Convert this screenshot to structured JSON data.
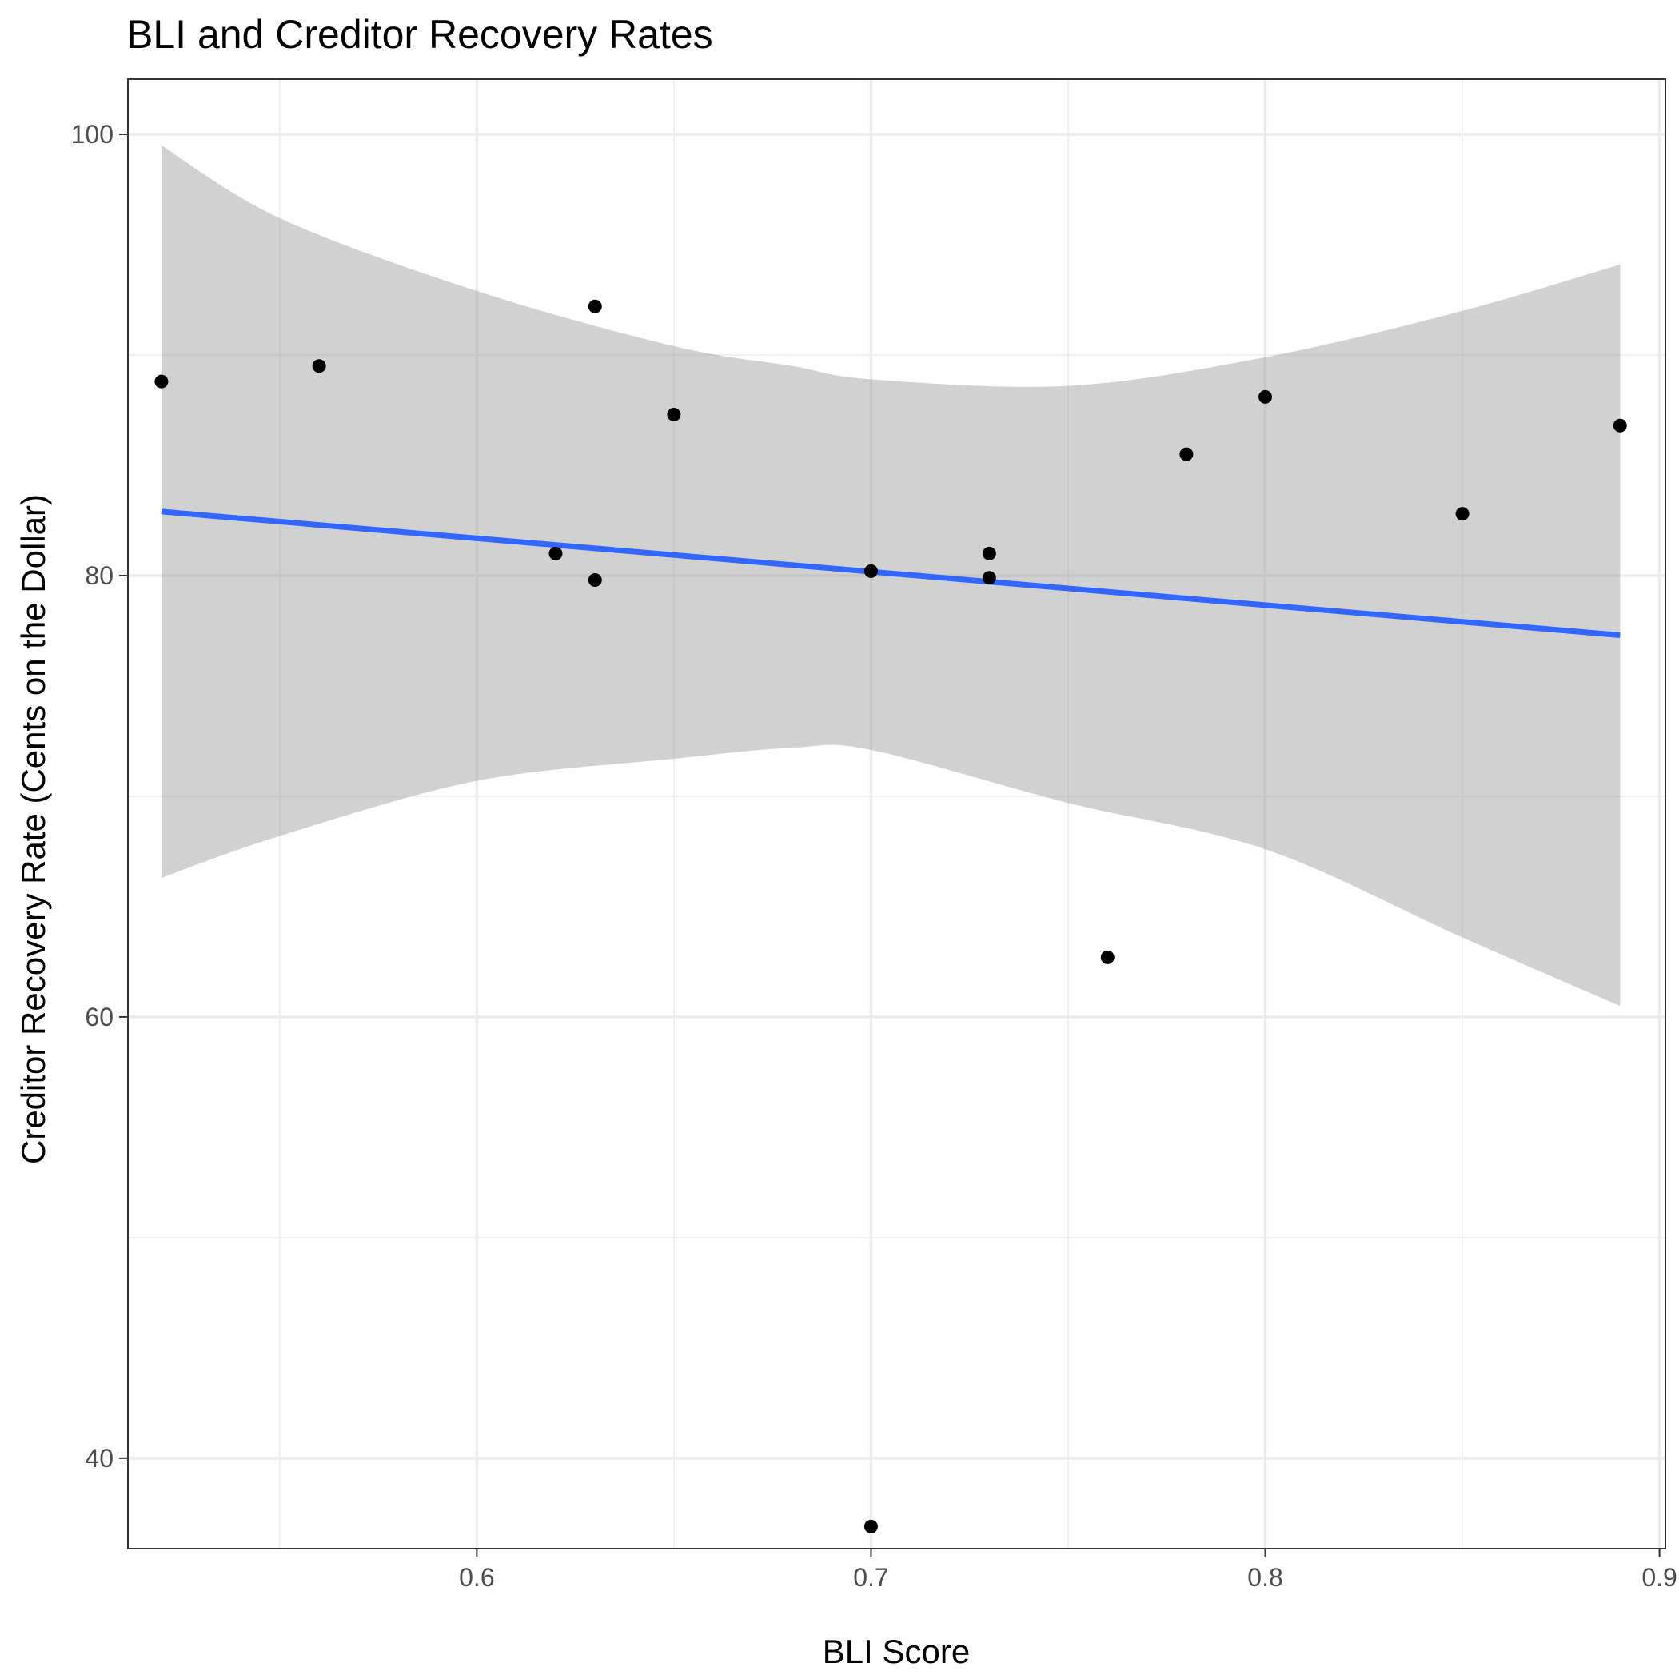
{
  "chart_data": {
    "type": "scatter",
    "title": "BLI and Creditor Recovery Rates",
    "xlabel": "BLI Score",
    "ylabel": "Creditor Recovery Rate (Cents on the Dollar)",
    "xlim": [
      0.5115,
      0.9015
    ],
    "ylim": [
      35.9,
      102.5
    ],
    "x_ticks": [
      0.6,
      0.7,
      0.8,
      0.9
    ],
    "x_tick_labels": [
      "0.6",
      "0.7",
      "0.8",
      "0.9"
    ],
    "x_minor_ticks": [
      0.55,
      0.65,
      0.75,
      0.85
    ],
    "y_ticks": [
      40,
      60,
      80,
      100
    ],
    "y_tick_labels": [
      "40",
      "60",
      "80",
      "100"
    ],
    "y_minor_ticks": [
      50,
      70,
      90
    ],
    "grid": true,
    "points": [
      {
        "x": 0.52,
        "y": 88.8
      },
      {
        "x": 0.56,
        "y": 89.5
      },
      {
        "x": 0.62,
        "y": 81.0
      },
      {
        "x": 0.63,
        "y": 92.2
      },
      {
        "x": 0.63,
        "y": 79.8
      },
      {
        "x": 0.65,
        "y": 87.3
      },
      {
        "x": 0.7,
        "y": 80.2
      },
      {
        "x": 0.7,
        "y": 36.9
      },
      {
        "x": 0.73,
        "y": 81.0
      },
      {
        "x": 0.73,
        "y": 79.9
      },
      {
        "x": 0.76,
        "y": 62.7
      },
      {
        "x": 0.78,
        "y": 85.5
      },
      {
        "x": 0.8,
        "y": 88.1
      },
      {
        "x": 0.85,
        "y": 82.8
      },
      {
        "x": 0.89,
        "y": 86.8
      }
    ],
    "regression": {
      "x": [
        0.52,
        0.89
      ],
      "y": [
        82.9,
        77.3
      ]
    },
    "confidence_band": {
      "x": [
        0.52,
        0.55,
        0.6,
        0.65,
        0.68,
        0.7,
        0.75,
        0.8,
        0.85,
        0.89
      ],
      "upper": [
        99.5,
        96.2,
        92.9,
        90.4,
        89.5,
        88.9,
        88.6,
        89.9,
        92.0,
        94.1
      ],
      "lower": [
        66.3,
        68.2,
        70.7,
        71.7,
        72.2,
        72.1,
        69.7,
        67.6,
        63.6,
        60.5
      ]
    },
    "colors": {
      "points": "#000000",
      "regression_line": "#3366FF",
      "confidence_band": "#999999",
      "grid": "#ebebeb",
      "panel_border": "#333333",
      "tick_label": "#4d4d4d"
    }
  }
}
